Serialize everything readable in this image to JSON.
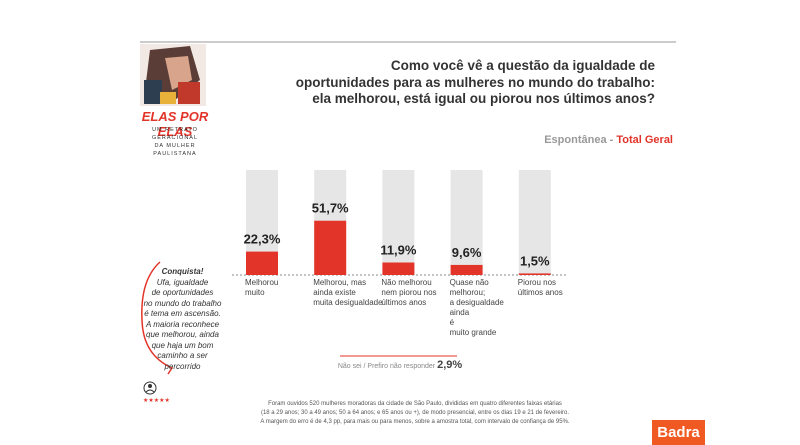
{
  "logo": {
    "title": "ELAS POR ELAS",
    "subtitle": "UM RETRATO GERACIONAL\nDA MULHER PAULISTANA"
  },
  "chart_data": {
    "type": "bar",
    "title": "Como você vê a questão da igualdade de\noportunidades para as mulheres no mundo do trabalho:\nela melhorou, está igual ou piorou nos últimos anos?",
    "subtitle": "Espontânea - ",
    "subtitle_highlight": "Total Geral",
    "categories": [
      "Melhorou\nmuito",
      "Melhorou, mas\nainda existe\nmuita desigualdade",
      "Não melhorou\nnem piorou nos\núltimos anos",
      "Quase não\nmelhorou;\na desigualdade\nainda\né\nmuito grande",
      "Piorou nos\núltimos anos"
    ],
    "values": [
      22.3,
      51.7,
      11.9,
      9.6,
      1.5
    ],
    "value_labels": [
      "22,3%",
      "51,7%",
      "11,9%",
      "9,6%",
      "1,5%"
    ],
    "color": "#e3342a",
    "track_color": "#e6e6e6",
    "ylim": [
      0,
      100
    ],
    "other_label": "Não sei / Prefiro não responder",
    "other_value_label": "2,9%"
  },
  "note": {
    "heading": "Conquista!",
    "text": "Ufa, igualdade\nde oportunidades\nno mundo do trabalho\né tema em ascensão.\nA maioria reconhece\nque melhorou, ainda\nque haja um bom\ncaminho a ser\npercorrido"
  },
  "footnote": "Foram ouvidos 520 mulheres moradoras da cidade de São Paulo, divididas em quatro diferentes faixas etárias\n(18 a 29 anos; 30 a 49 anos; 50 a 64 anos; e 65 anos ou +), de modo presencial, entre os dias 19 e 21 de fevereiro.\nA margem do erro é de 4,3 pp, para mais ou para menos, sobre a amostra total, com intervalo de confiança de 95%.",
  "brand": "Badra"
}
